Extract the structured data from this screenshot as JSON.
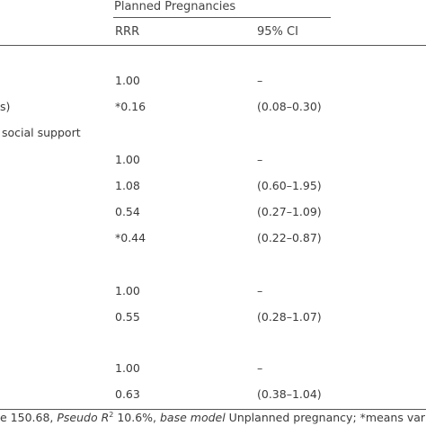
{
  "table": {
    "group_header": "Planned Pregnancies",
    "col_rrr": "RRR",
    "col_ci": "95% CI",
    "row_labels": {
      "partial_1": "s)",
      "partial_2": "social support"
    },
    "rows": [
      {
        "rrr": "1.00",
        "ci": "–"
      },
      {
        "rrr": "*0.16",
        "ci": "(0.08–0.30)"
      },
      {
        "rrr": "1.00",
        "ci": "–"
      },
      {
        "rrr": "1.08",
        "ci": "(0.60–1.95)"
      },
      {
        "rrr": "0.54",
        "ci": "(0.27–1.09)"
      },
      {
        "rrr": "*0.44",
        "ci": "(0.22–0.87)"
      },
      {
        "rrr": "1.00",
        "ci": "–"
      },
      {
        "rrr": "0.55",
        "ci": "(0.28–1.07)"
      },
      {
        "rrr": "1.00",
        "ci": "–"
      },
      {
        "rrr": "0.63",
        "ci": "(0.38–1.04)"
      }
    ]
  },
  "footnote": {
    "chi_value": "e 150.68, ",
    "pseudo_label": "Pseudo R",
    "pseudo_sup": "2",
    "pseudo_value": " 10.6%, ",
    "base_label": "base model",
    "base_value": " Unplanned pregnancy; ",
    "star_note": "*means variable"
  }
}
